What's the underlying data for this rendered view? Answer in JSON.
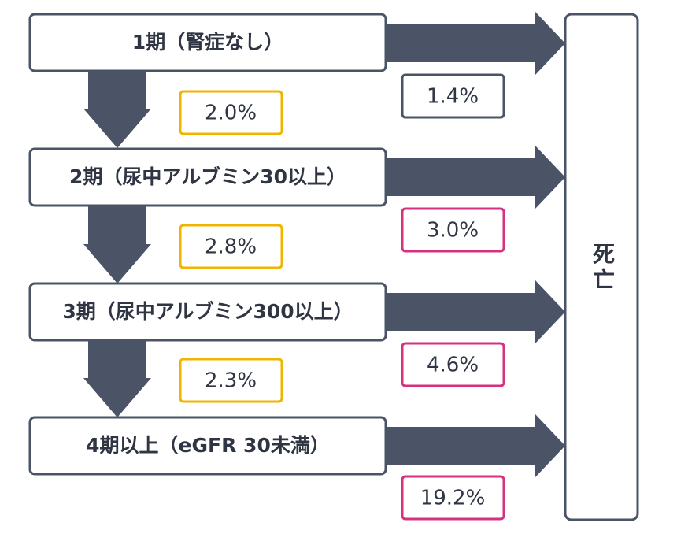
{
  "stages": [
    {
      "label": "1期（腎症なし）"
    },
    {
      "label": "2期（尿中アルブミン30以上）"
    },
    {
      "label": "3期（尿中アルブミン300以上）"
    },
    {
      "label": "4期以上（eGFR 30未満）"
    }
  ],
  "progression_rates": [
    "2.0%",
    "2.8%",
    "2.3%"
  ],
  "death_rates": [
    "1.4%",
    "3.0%",
    "4.6%",
    "19.2%"
  ],
  "death": {
    "label": "死亡"
  }
}
